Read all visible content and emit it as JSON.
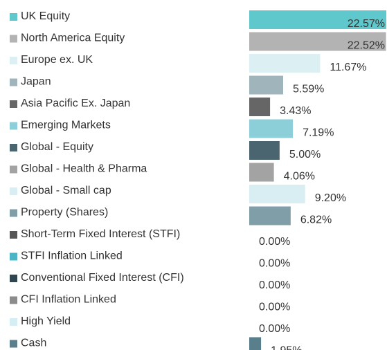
{
  "chart_data": {
    "type": "hbar",
    "categories": [
      "UK Equity",
      "North America Equity",
      "Europe ex. UK",
      "Japan",
      "Asia Pacific Ex. Japan",
      "Emerging Markets",
      "Global - Equity",
      "Global - Health & Pharma",
      "Global - Small cap",
      "Property (Shares)",
      "Short-Term Fixed Interest (STFI)",
      "STFI Inflation Linked",
      "Conventional Fixed Interest (CFI)",
      "CFI Inflation Linked",
      "High Yield",
      "Cash"
    ],
    "values": [
      22.57,
      22.52,
      11.67,
      5.59,
      3.43,
      7.19,
      5.0,
      4.06,
      9.2,
      6.82,
      0.0,
      0.0,
      0.0,
      0.0,
      0.0,
      1.95
    ],
    "value_labels": [
      "22.57%",
      "22.52%",
      "11.67%",
      "5.59%",
      "3.43%",
      "7.19%",
      "5.00%",
      "4.06%",
      "9.20%",
      "6.82%",
      "0.00%",
      "0.00%",
      "0.00%",
      "0.00%",
      "0.00%",
      "1.95%"
    ],
    "colors": [
      "#5ec8cc",
      "#b3b3b3",
      "#dcf0f4",
      "#a0b4bc",
      "#666666",
      "#8ccfd8",
      "#4b6570",
      "#a3a3a3",
      "#d8eef3",
      "#7f9ea8",
      "#555555",
      "#4ab5c4",
      "#2f4650",
      "#8c8c8c",
      "#d5eef3",
      "#5a7f8c"
    ]
  }
}
